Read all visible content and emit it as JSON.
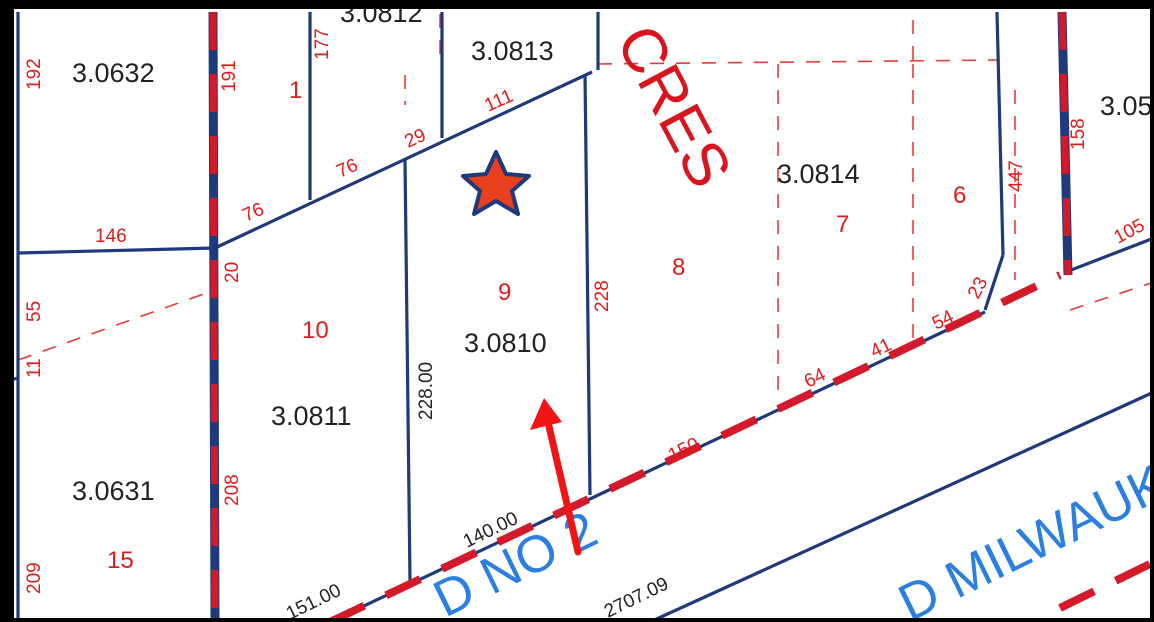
{
  "parcels": {
    "p0632": "3.0632",
    "p0812": "3.0812",
    "p0813": "3.0813",
    "p0814": "3.0814",
    "p05x": "3.05",
    "p0810": "3.0810",
    "p0811": "3.0811",
    "p0631": "3.0631"
  },
  "dimensions": {
    "d192": "192",
    "d191": "191",
    "d177": "177",
    "d1": "1",
    "d111": "111",
    "d29": "29",
    "d76a": "76",
    "d76b": "76",
    "d146": "146",
    "d20": "20",
    "d55": "55",
    "d11": "11",
    "d228": "228",
    "d228_00": "228.00",
    "d208": "208",
    "d209": "209",
    "d447": "447",
    "d158": "158",
    "d105": "105",
    "d23": "23",
    "d54": "54",
    "d41": "41",
    "d64": "64",
    "d150": "150",
    "d140_00": "140.00",
    "d151_00": "151.00",
    "d2707_09": "2707.09"
  },
  "lots": {
    "l1": "1",
    "l6": "6",
    "l7": "7",
    "l8": "8",
    "l9": "9",
    "l10": "10",
    "l15": "15"
  },
  "labels": {
    "subdivision": "CRES",
    "road_no": "D NO 2",
    "road_name": "D MILWAUKE"
  },
  "markers": {
    "star": "star-marker",
    "arrow": "pointer-arrow"
  },
  "colors": {
    "parcel_line": "#1e3a7a",
    "dimension_text": "#e01b1b",
    "right_of_way": "#d31a2a",
    "road_label": "#2a7fe0",
    "star_fill": "#e8401c",
    "star_outline": "#1e3a7a",
    "arrow": "#f01414"
  }
}
